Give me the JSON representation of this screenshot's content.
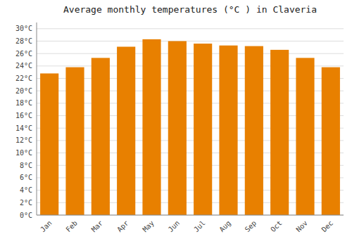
{
  "chart_data": {
    "type": "bar",
    "title": "Average monthly temperatures (°C ) in Claveria",
    "categories": [
      "Jan",
      "Feb",
      "Mar",
      "Apr",
      "May",
      "Jun",
      "Jul",
      "Aug",
      "Sep",
      "Oct",
      "Nov",
      "Dec"
    ],
    "values": [
      22.8,
      23.8,
      25.3,
      27.1,
      28.3,
      28.0,
      27.6,
      27.3,
      27.2,
      26.6,
      25.3,
      23.8
    ],
    "color": "#E88000",
    "ylim": [
      0,
      31
    ],
    "yticks": [
      {
        "value": 0,
        "label": "0°C"
      },
      {
        "value": 2,
        "label": "2°C"
      },
      {
        "value": 4,
        "label": "4°C"
      },
      {
        "value": 6,
        "label": "6°C"
      },
      {
        "value": 8,
        "label": "8°C"
      },
      {
        "value": 10,
        "label": "10°C"
      },
      {
        "value": 12,
        "label": "12°C"
      },
      {
        "value": 14,
        "label": "14°C"
      },
      {
        "value": 16,
        "label": "16°C"
      },
      {
        "value": 18,
        "label": "18°C"
      },
      {
        "value": 20,
        "label": "20°C"
      },
      {
        "value": 22,
        "label": "22°C"
      },
      {
        "value": 24,
        "label": "24°C"
      },
      {
        "value": 26,
        "label": "26°C"
      },
      {
        "value": 28,
        "label": "28°C"
      },
      {
        "value": 30,
        "label": "30°C"
      }
    ],
    "grid": true
  }
}
